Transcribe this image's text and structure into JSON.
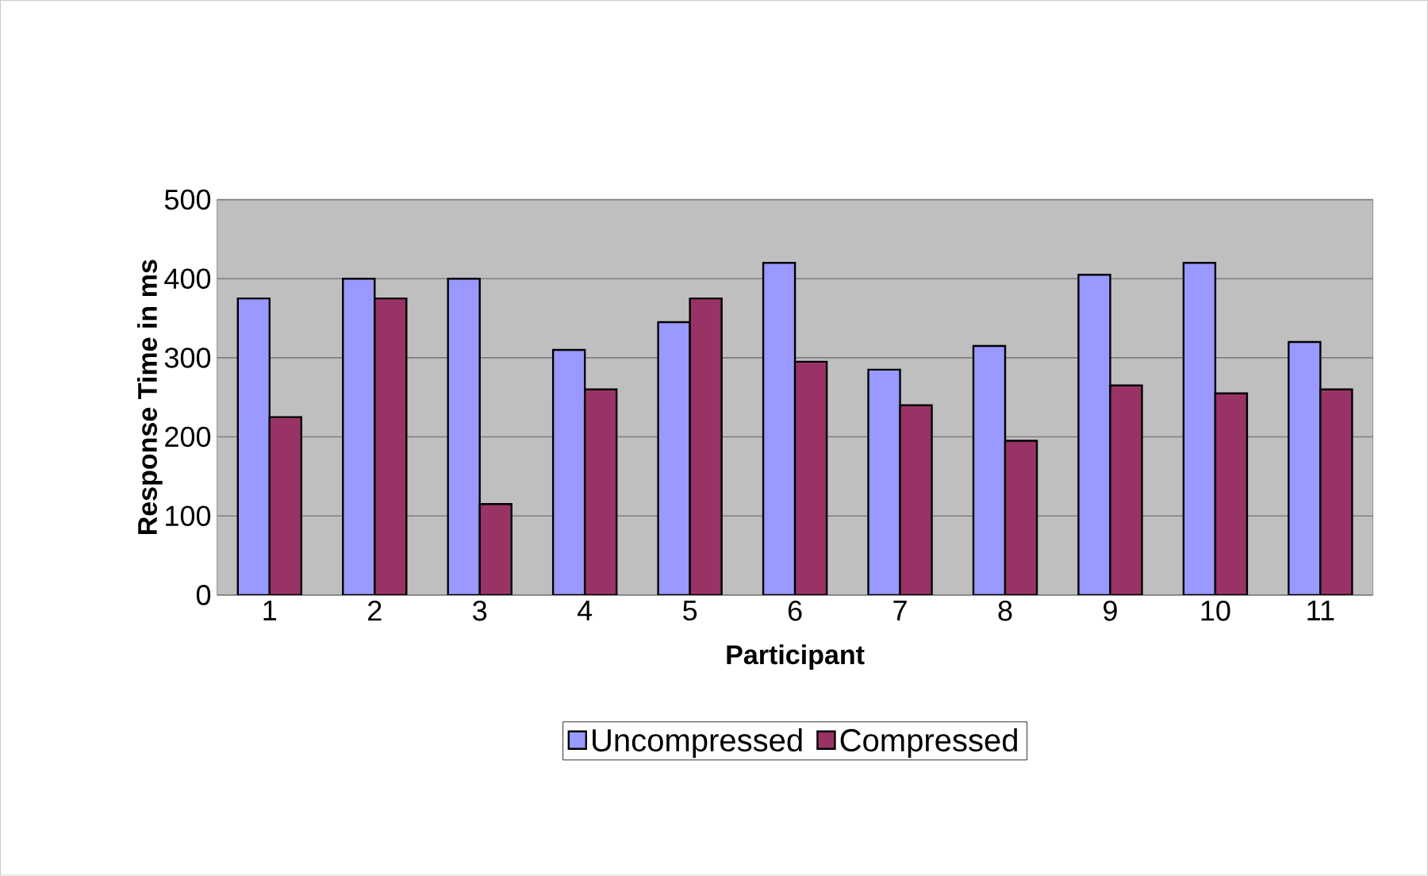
{
  "chart_data": {
    "type": "bar",
    "xlabel": "Participant",
    "ylabel": "Response Time in ms",
    "categories": [
      "1",
      "2",
      "3",
      "4",
      "5",
      "6",
      "7",
      "8",
      "9",
      "10",
      "11"
    ],
    "series": [
      {
        "name": "Uncompressed",
        "color": "#9999ff",
        "values": [
          375,
          400,
          400,
          310,
          345,
          420,
          285,
          315,
          405,
          420,
          320
        ]
      },
      {
        "name": "Compressed",
        "color": "#993366",
        "values": [
          225,
          375,
          115,
          260,
          375,
          295,
          240,
          195,
          265,
          255,
          260
        ]
      }
    ],
    "ylim": [
      0,
      500
    ],
    "yticks": [
      0,
      100,
      200,
      300,
      400,
      500
    ],
    "grid": "y",
    "legend": "bottom"
  }
}
